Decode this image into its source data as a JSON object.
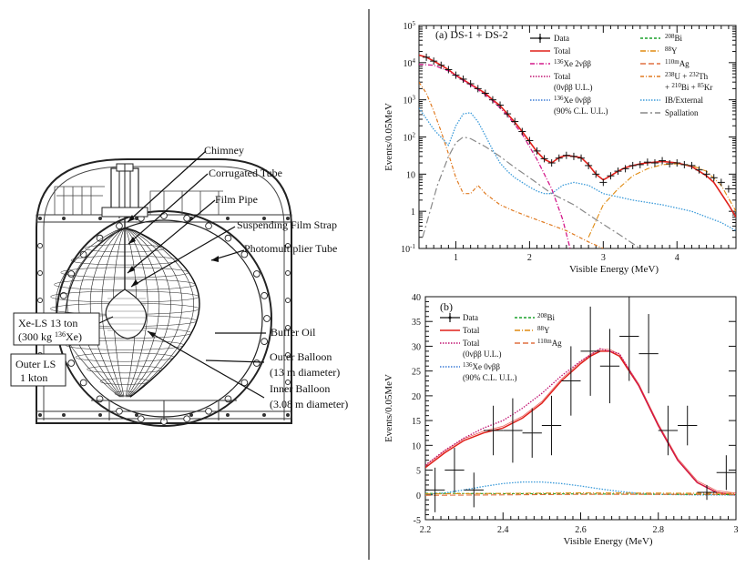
{
  "colors": {
    "total": "#e0201a",
    "xe2nbb": "#d4198a",
    "dotted_pink": "#c01070",
    "zero_nbb": "#3a7bd5",
    "bi208": "#1aa02a",
    "y88": "#e08a10",
    "ag110m": "#e07040",
    "u238": "#e07a20",
    "ib": "#3a9ad9",
    "spallation": "#888888",
    "data": "#111111"
  },
  "detector": {
    "labels": {
      "chimney": "Chimney",
      "corrugated_tube": "Corrugated Tube",
      "film_pipe": "Film Pipe",
      "suspending_film_strap": "Suspending Film Strap",
      "pmt": "Photomultiplier Tube",
      "buffer_oil": "Buffer Oil",
      "outer_balloon_1": "Outer Balloon",
      "outer_balloon_2": "(13 m diameter)",
      "inner_balloon_1": "Inner Balloon",
      "inner_balloon_2": "(3.08 m diameter)",
      "xels_1": "Xe-LS 13 ton",
      "xels_2_pre": "(300 kg ",
      "xels_2_sup": "136",
      "xels_2_post": "Xe)",
      "outer_ls_1": "Outer LS",
      "outer_ls_2": "1 kton"
    }
  },
  "chart_data": [
    {
      "type": "line",
      "panel": "(a) DS-1 + DS-2",
      "title": "(a) DS-1 + DS-2",
      "xlabel": "Visible Energy (MeV)",
      "ylabel": "Events/0.05MeV",
      "xlim": [
        0.5,
        4.8
      ],
      "ylim": [
        0.1,
        100000
      ],
      "yscale": "log",
      "x_ticks": [
        "1",
        "2",
        "3",
        "4"
      ],
      "y_ticks": [
        {
          "base": "10",
          "exp": "-1"
        },
        {
          "base": "1",
          "exp": ""
        },
        {
          "base": "10",
          "exp": ""
        },
        {
          "base": "10",
          "exp": "2"
        },
        {
          "base": "10",
          "exp": "3"
        },
        {
          "base": "10",
          "exp": "4"
        },
        {
          "base": "10",
          "exp": "5"
        }
      ],
      "legend": {
        "col1": [
          {
            "key": "data",
            "text": "Data"
          },
          {
            "key": "total",
            "text": "Total"
          },
          {
            "key": "xe2nbb",
            "pre": "",
            "sup": "136",
            "text": "Xe 2νββ"
          },
          {
            "key": "total_ul",
            "text": "Total",
            "text2": "(0νββ U.L.)"
          },
          {
            "key": "zero_nbb",
            "pre": "",
            "sup": "136",
            "text": "Xe 0νββ",
            "text2": "(90% C.L. U.L.)"
          }
        ],
        "col2": [
          {
            "key": "bi208",
            "sup": "208",
            "text": "Bi"
          },
          {
            "key": "y88",
            "sup": "88",
            "text": "Y"
          },
          {
            "key": "ag110m",
            "sup": "110m",
            "text": "Ag"
          },
          {
            "key": "u238",
            "sup": "238",
            "text": "U + ",
            "sup2": "232",
            "text2": "Th",
            "line2_pre": "+ ",
            "line2_sup": "210",
            "line2_mid": "Bi + ",
            "line2_sup2": "85",
            "line2_post": "Kr"
          },
          {
            "key": "ib",
            "text": "IB/External"
          },
          {
            "key": "spallation",
            "text": "Spallation"
          }
        ]
      },
      "series": [
        {
          "name": "Total",
          "x": [
            0.5,
            0.6,
            0.7,
            0.8,
            0.9,
            1.0,
            1.1,
            1.2,
            1.3,
            1.4,
            1.5,
            1.6,
            1.7,
            1.8,
            1.9,
            2.0,
            2.1,
            2.2,
            2.3,
            2.4,
            2.5,
            2.6,
            2.7,
            2.8,
            2.9,
            3.0,
            3.1,
            3.2,
            3.3,
            3.4,
            3.5,
            3.6,
            3.7,
            3.8,
            3.9,
            4.0,
            4.1,
            4.2,
            4.3,
            4.4,
            4.5,
            4.6,
            4.7,
            4.8
          ],
          "values": [
            16000,
            14000,
            11000,
            8500,
            6500,
            4500,
            3500,
            2600,
            2000,
            1500,
            1000,
            700,
            420,
            250,
            140,
            75,
            40,
            25,
            20,
            28,
            32,
            30,
            28,
            18,
            10,
            7,
            9,
            12,
            15,
            17,
            19,
            20,
            21,
            22,
            21,
            20,
            18,
            16,
            12,
            9,
            6,
            3,
            1.5,
            0.7
          ]
        },
        {
          "name": "136Xe 2νββ",
          "x": [
            0.5,
            0.7,
            0.9,
            1.1,
            1.3,
            1.5,
            1.7,
            1.9,
            2.1,
            2.3,
            2.45,
            2.55
          ],
          "values": [
            9000,
            8500,
            6000,
            3300,
            1900,
            950,
            380,
            120,
            25,
            4,
            0.6,
            0.1
          ]
        },
        {
          "name": "IB/External",
          "x": [
            0.5,
            0.7,
            0.9,
            1.0,
            1.1,
            1.2,
            1.3,
            1.4,
            1.5,
            1.6,
            1.7,
            1.8,
            1.9,
            2.0,
            2.1,
            2.2,
            2.3,
            2.45,
            2.6,
            2.8,
            3.0,
            3.4,
            3.8,
            4.2,
            4.6,
            4.8
          ],
          "values": [
            600,
            160,
            60,
            200,
            420,
            450,
            260,
            110,
            45,
            20,
            12,
            8,
            6,
            4.5,
            3.5,
            3,
            3,
            5,
            6,
            5,
            3,
            2,
            1.5,
            1,
            0.5,
            0.3
          ]
        },
        {
          "name": "Spallation",
          "x": [
            0.55,
            0.65,
            0.75,
            0.9,
            1.0,
            1.1,
            1.2,
            1.4,
            1.6,
            1.8,
            2.0,
            2.3,
            2.6,
            2.9,
            3.2,
            3.5
          ],
          "values": [
            0.2,
            1,
            5,
            30,
            70,
            100,
            90,
            55,
            30,
            15,
            8,
            3,
            1.5,
            0.6,
            0.25,
            0.1
          ]
        },
        {
          "name": "238U+232Th",
          "x": [
            0.5,
            0.6,
            0.7,
            0.8,
            0.9,
            1.0,
            1.1,
            1.2,
            1.3,
            1.4,
            1.6,
            1.8,
            2.0,
            2.2,
            2.5,
            2.8,
            3.0
          ],
          "values": [
            3000,
            1500,
            500,
            140,
            35,
            8,
            3,
            3,
            5,
            3,
            1.5,
            1,
            0.7,
            0.5,
            0.3,
            0.15,
            0.1
          ]
        },
        {
          "name": "88Y (3-4 MeV bump)",
          "x": [
            2.8,
            3.0,
            3.2,
            3.4,
            3.6,
            3.8,
            4.0,
            4.2,
            4.4,
            4.6,
            4.8
          ],
          "values": [
            0.2,
            1.5,
            4,
            9,
            14,
            18,
            19,
            17,
            12,
            5,
            1
          ]
        }
      ],
      "data_points": {
        "x": [
          0.6,
          0.7,
          0.8,
          0.9,
          1.0,
          1.1,
          1.2,
          1.3,
          1.4,
          1.5,
          1.6,
          1.7,
          1.8,
          1.9,
          2.0,
          2.1,
          2.2,
          2.3,
          2.4,
          2.5,
          2.6,
          2.7,
          2.8,
          2.9,
          3.0,
          3.1,
          3.2,
          3.3,
          3.4,
          3.5,
          3.6,
          3.7,
          3.8,
          3.9,
          4.0,
          4.1,
          4.2,
          4.3,
          4.4,
          4.5,
          4.6,
          4.7
        ],
        "y": [
          14000,
          11000,
          8500,
          6500,
          4600,
          3600,
          2700,
          2000,
          1500,
          1000,
          720,
          420,
          260,
          140,
          80,
          42,
          26,
          20,
          27,
          32,
          30,
          27,
          17,
          10,
          6,
          9,
          12,
          14,
          17,
          18,
          21,
          20,
          23,
          19,
          20,
          18,
          17,
          13,
          10,
          8,
          6,
          4
        ]
      }
    },
    {
      "type": "line",
      "panel": "(b)",
      "title": "(b)",
      "xlabel": "Visible Energy (MeV)",
      "ylabel": "Events/0.05MeV",
      "xlim": [
        2.2,
        3.0
      ],
      "ylim": [
        -5,
        40
      ],
      "x_ticks": [
        "2.2",
        "2.4",
        "2.6",
        "2.8",
        "3"
      ],
      "y_ticks": [
        "-5",
        "0",
        "5",
        "10",
        "15",
        "20",
        "25",
        "30",
        "35",
        "40"
      ],
      "legend": {
        "col1": [
          {
            "key": "data",
            "text": "Data"
          },
          {
            "key": "total",
            "text": "Total"
          },
          {
            "key": "total_ul",
            "text": "Total",
            "text2": "(0νββ U.L.)"
          },
          {
            "key": "zero_nbb",
            "sup": "136",
            "text": "Xe 0νββ",
            "text2": "(90% C.L. U.L.)"
          }
        ],
        "col2": [
          {
            "key": "bi208",
            "sup": "208",
            "text": "Bi"
          },
          {
            "key": "y88",
            "sup": "88",
            "text": "Y"
          },
          {
            "key": "ag110m",
            "sup": "110m",
            "text": "Ag"
          }
        ]
      },
      "series": [
        {
          "name": "Total",
          "x": [
            2.2,
            2.25,
            2.3,
            2.35,
            2.4,
            2.45,
            2.5,
            2.55,
            2.6,
            2.625,
            2.65,
            2.675,
            2.7,
            2.75,
            2.8,
            2.85,
            2.9,
            2.95,
            3.0
          ],
          "values": [
            5.5,
            8.5,
            11,
            12.5,
            13.5,
            15.5,
            18.5,
            23,
            26.5,
            28,
            29,
            29,
            28,
            22,
            14,
            7,
            2.5,
            0.5,
            0
          ]
        },
        {
          "name": "Total (0νββ U.L.)",
          "x": [
            2.2,
            2.25,
            2.3,
            2.35,
            2.4,
            2.45,
            2.5,
            2.55,
            2.6,
            2.65,
            2.7,
            2.75,
            2.8,
            2.85,
            2.9,
            2.95,
            3.0
          ],
          "values": [
            6,
            9,
            11.5,
            13.5,
            15,
            17.5,
            20.5,
            24,
            27,
            29.5,
            28.5,
            22,
            14,
            7,
            2.5,
            0.5,
            0
          ]
        },
        {
          "name": "136Xe 0νββ",
          "x": [
            2.2,
            2.25,
            2.3,
            2.35,
            2.4,
            2.45,
            2.5,
            2.55,
            2.6,
            2.65,
            2.7,
            2.75,
            2.8,
            2.9,
            3.0
          ],
          "values": [
            0.1,
            0.4,
            1,
            1.7,
            2.3,
            2.6,
            2.6,
            2.3,
            1.8,
            1.2,
            0.7,
            0.3,
            0.1,
            0,
            0
          ]
        },
        {
          "name": "208Bi",
          "x": [
            2.2,
            2.6,
            3.0
          ],
          "values": [
            0.3,
            0.2,
            0.05
          ]
        },
        {
          "name": "88Y",
          "x": [
            2.2,
            2.6,
            3.0
          ],
          "values": [
            0.2,
            0.4,
            0.3
          ]
        },
        {
          "name": "110mAg",
          "x": [
            2.2,
            2.6,
            3.0
          ],
          "values": [
            -0.1,
            0.1,
            0.1
          ]
        }
      ],
      "data_points": {
        "x": [
          2.225,
          2.275,
          2.325,
          2.375,
          2.425,
          2.475,
          2.525,
          2.575,
          2.625,
          2.675,
          2.725,
          2.775,
          2.825,
          2.875,
          2.925,
          2.975
        ],
        "y": [
          1,
          5,
          1,
          13,
          13,
          12.5,
          14,
          23,
          29,
          26,
          32,
          28.5,
          13,
          14,
          0.5,
          4.5
        ],
        "err": [
          4.5,
          4.5,
          3.5,
          5,
          6.5,
          5,
          6,
          7,
          9,
          7.5,
          9,
          8,
          5,
          4,
          1.5,
          3.5
        ]
      }
    }
  ]
}
